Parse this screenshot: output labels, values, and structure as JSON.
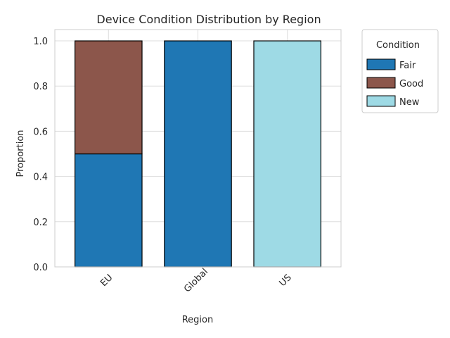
{
  "chart_data": {
    "type": "bar",
    "stacked": true,
    "title": "Device Condition Distribution by Region",
    "xlabel": "Region",
    "ylabel": "Proportion",
    "categories": [
      "EU",
      "Global",
      "US"
    ],
    "series": [
      {
        "name": "Fair",
        "values": [
          0.5,
          1.0,
          0.0
        ],
        "color": "#1f77b4"
      },
      {
        "name": "Good",
        "values": [
          0.5,
          0.0,
          0.0
        ],
        "color": "#8c564b"
      },
      {
        "name": "New",
        "values": [
          0.0,
          0.0,
          1.0
        ],
        "color": "#9edae5"
      }
    ],
    "ylim": [
      0,
      1.05
    ],
    "yticks": [
      "0.0",
      "0.2",
      "0.4",
      "0.6",
      "0.8",
      "1.0"
    ],
    "grid": true,
    "legend": {
      "title": "Condition",
      "placement": "outside-top-right"
    }
  }
}
